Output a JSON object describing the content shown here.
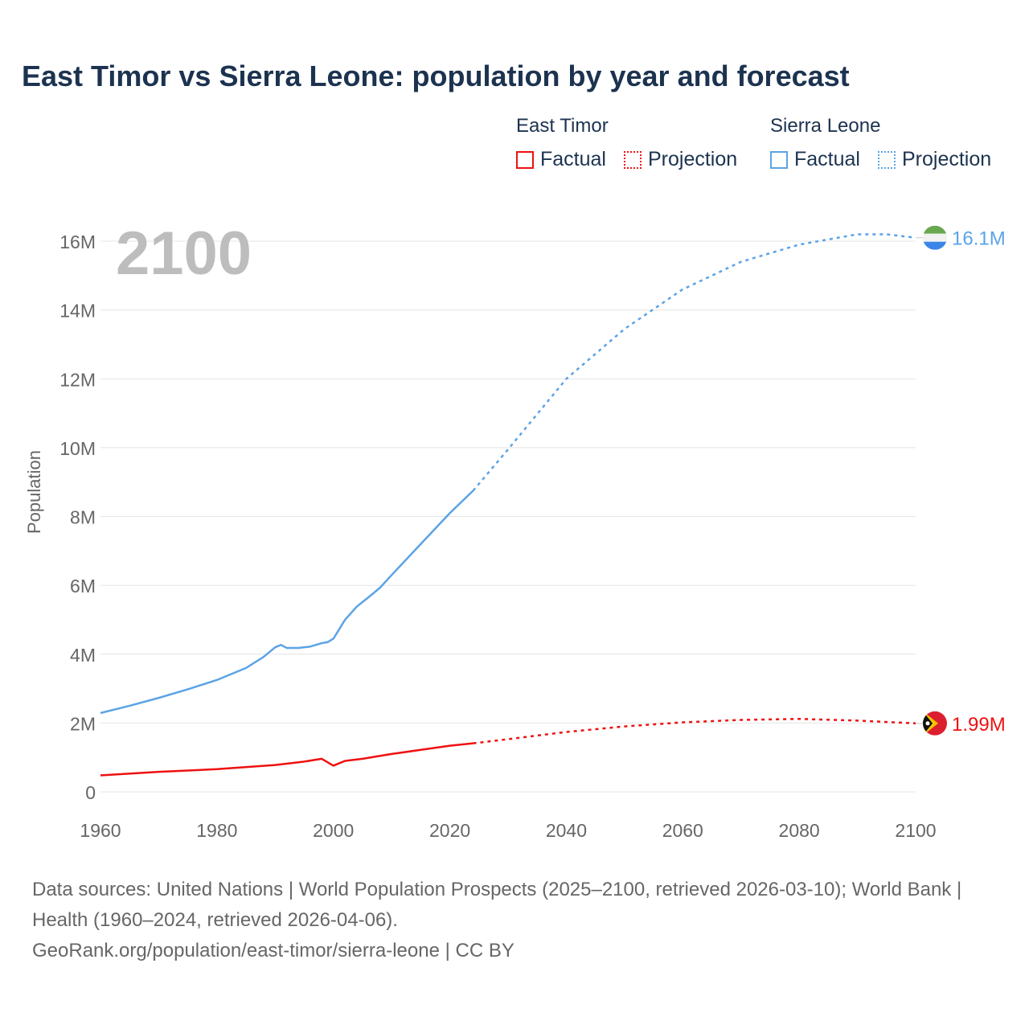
{
  "title": "East Timor vs Sierra Leone: population by year and forecast",
  "current_year": "2100",
  "legend": {
    "groups": [
      {
        "name": "East Timor",
        "factual": "Factual",
        "projection": "Projection",
        "color": "#ee1111"
      },
      {
        "name": "Sierra Leone",
        "factual": "Factual",
        "projection": "Projection",
        "color": "#5ba3e6"
      }
    ]
  },
  "footer": {
    "line1": "Data sources: United Nations | World Population Prospects (2025–2100, retrieved 2026-03-10); World Bank | Health (1960–2024, retrieved 2026-04-06).",
    "line2": "GeoRank.org/population/east-timor/sierra-leone | CC BY"
  },
  "chart_data": {
    "type": "line",
    "title": "East Timor vs Sierra Leone: population by year and forecast",
    "xlabel": "",
    "ylabel": "Population",
    "xlim": [
      1960,
      2100
    ],
    "ylim": [
      0,
      16000000
    ],
    "x_ticks": [
      "1960",
      "1980",
      "2000",
      "2020",
      "2040",
      "2060",
      "2080",
      "2100"
    ],
    "y_ticks": [
      "0",
      "2M",
      "4M",
      "6M",
      "8M",
      "10M",
      "12M",
      "14M",
      "16M"
    ],
    "grid": true,
    "series": [
      {
        "name": "Sierra Leone",
        "color": "#5ba3e6",
        "end_label": "16.1M",
        "factual": [
          [
            1960,
            2.29
          ],
          [
            1965,
            2.5
          ],
          [
            1970,
            2.73
          ],
          [
            1975,
            2.98
          ],
          [
            1980,
            3.25
          ],
          [
            1985,
            3.6
          ],
          [
            1988,
            3.92
          ],
          [
            1990,
            4.2
          ],
          [
            1991,
            4.27
          ],
          [
            1992,
            4.18
          ],
          [
            1994,
            4.18
          ],
          [
            1996,
            4.22
          ],
          [
            1998,
            4.32
          ],
          [
            1999,
            4.35
          ],
          [
            2000,
            4.45
          ],
          [
            2002,
            5.0
          ],
          [
            2004,
            5.38
          ],
          [
            2006,
            5.65
          ],
          [
            2008,
            5.93
          ],
          [
            2010,
            6.3
          ],
          [
            2015,
            7.2
          ],
          [
            2020,
            8.1
          ],
          [
            2024,
            8.75
          ]
        ],
        "projection": [
          [
            2024,
            8.75
          ],
          [
            2030,
            9.95
          ],
          [
            2040,
            12.0
          ],
          [
            2050,
            13.45
          ],
          [
            2060,
            14.6
          ],
          [
            2070,
            15.4
          ],
          [
            2080,
            15.9
          ],
          [
            2090,
            16.2
          ],
          [
            2095,
            16.2
          ],
          [
            2100,
            16.1
          ]
        ]
      },
      {
        "name": "East Timor",
        "color": "#ee1111",
        "end_label": "1.99M",
        "factual": [
          [
            1960,
            0.48
          ],
          [
            1970,
            0.58
          ],
          [
            1980,
            0.66
          ],
          [
            1990,
            0.78
          ],
          [
            1995,
            0.88
          ],
          [
            1998,
            0.96
          ],
          [
            2000,
            0.76
          ],
          [
            2002,
            0.9
          ],
          [
            2005,
            0.96
          ],
          [
            2010,
            1.1
          ],
          [
            2015,
            1.22
          ],
          [
            2020,
            1.34
          ],
          [
            2024,
            1.41
          ]
        ],
        "projection": [
          [
            2024,
            1.41
          ],
          [
            2030,
            1.53
          ],
          [
            2040,
            1.74
          ],
          [
            2050,
            1.9
          ],
          [
            2060,
            2.02
          ],
          [
            2070,
            2.09
          ],
          [
            2080,
            2.12
          ],
          [
            2090,
            2.07
          ],
          [
            2100,
            1.99
          ]
        ]
      }
    ]
  }
}
